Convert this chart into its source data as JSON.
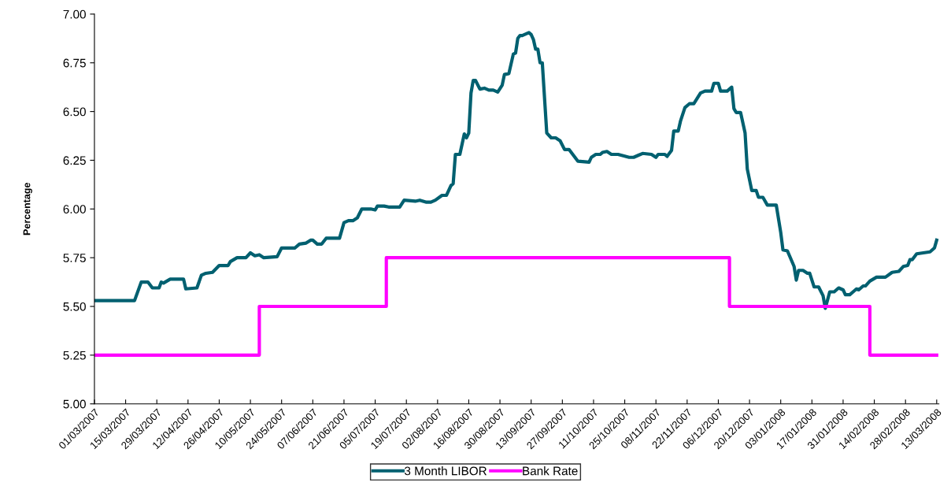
{
  "chart_data": {
    "type": "line",
    "ylabel": "Percentage",
    "xlim": [
      "2007-03-01",
      "2008-03-14"
    ],
    "xticks": [
      {
        "value": "2007-03-01",
        "label": "01/03/2007"
      },
      {
        "value": "2007-03-15",
        "label": "15/03/2007"
      },
      {
        "value": "2007-03-29",
        "label": "29/03/2007"
      },
      {
        "value": "2007-04-12",
        "label": "12/04/2007"
      },
      {
        "value": "2007-04-26",
        "label": "26/04/2007"
      },
      {
        "value": "2007-05-10",
        "label": "10/05/2007"
      },
      {
        "value": "2007-05-24",
        "label": "24/05/2007"
      },
      {
        "value": "2007-06-07",
        "label": "07/06/2007"
      },
      {
        "value": "2007-06-21",
        "label": "21/06/2007"
      },
      {
        "value": "2007-07-05",
        "label": "05/07/2007"
      },
      {
        "value": "2007-07-19",
        "label": "19/07/2007"
      },
      {
        "value": "2007-08-02",
        "label": "02/08/2007"
      },
      {
        "value": "2007-08-16",
        "label": "16/08/2007"
      },
      {
        "value": "2007-08-30",
        "label": "30/08/2007"
      },
      {
        "value": "2007-09-13",
        "label": "13/09/2007"
      },
      {
        "value": "2007-09-27",
        "label": "27/09/2007"
      },
      {
        "value": "2007-10-11",
        "label": "11/10/2007"
      },
      {
        "value": "2007-10-25",
        "label": "25/10/2007"
      },
      {
        "value": "2007-11-08",
        "label": "08/11/2007"
      },
      {
        "value": "2007-11-22",
        "label": "22/11/2007"
      },
      {
        "value": "2007-12-06",
        "label": "06/12/2007"
      },
      {
        "value": "2007-12-20",
        "label": "20/12/2007"
      },
      {
        "value": "2008-01-03",
        "label": "03/01/2008"
      },
      {
        "value": "2008-01-17",
        "label": "17/01/2008"
      },
      {
        "value": "2008-01-31",
        "label": "31/01/2008"
      },
      {
        "value": "2008-02-14",
        "label": "14/02/2008"
      },
      {
        "value": "2008-02-28",
        "label": "28/02/2008"
      },
      {
        "value": "2008-03-13",
        "label": "13/03/2008"
      }
    ],
    "ylim": [
      5,
      7
    ],
    "yticks": [
      {
        "value": 5,
        "label": "5.00"
      },
      {
        "value": 5.25,
        "label": "5.25"
      },
      {
        "value": 5.5,
        "label": "5.50"
      },
      {
        "value": 5.75,
        "label": "5.75"
      },
      {
        "value": 6,
        "label": "6.00"
      },
      {
        "value": 6.25,
        "label": "6.25"
      },
      {
        "value": 6.5,
        "label": "6.50"
      },
      {
        "value": 6.75,
        "label": "6.75"
      },
      {
        "value": 7,
        "label": "7.00"
      }
    ],
    "legend": "bottom",
    "grid": false,
    "marker": "none",
    "line_style": "solid",
    "series": [
      {
        "name": "3 Month LIBOR",
        "color": "#006070",
        "x": [
          "2007-03-01",
          "2007-03-19",
          "2007-03-22",
          "2007-03-25",
          "2007-03-27",
          "2007-03-30",
          "2007-03-31",
          "2007-04-01",
          "2007-04-04",
          "2007-04-10",
          "2007-04-11",
          "2007-04-16",
          "2007-04-18",
          "2007-04-20",
          "2007-04-23",
          "2007-04-26",
          "2007-04-30",
          "2007-05-01",
          "2007-05-04",
          "2007-05-08",
          "2007-05-10",
          "2007-05-12",
          "2007-05-14",
          "2007-05-16",
          "2007-05-22",
          "2007-05-24",
          "2007-05-30",
          "2007-06-01",
          "2007-06-04",
          "2007-06-06",
          "2007-06-07",
          "2007-06-09",
          "2007-06-11",
          "2007-06-13",
          "2007-06-19",
          "2007-06-21",
          "2007-06-23",
          "2007-06-25",
          "2007-06-27",
          "2007-06-29",
          "2007-07-03",
          "2007-07-05",
          "2007-07-06",
          "2007-07-09",
          "2007-07-11",
          "2007-07-16",
          "2007-07-18",
          "2007-07-23",
          "2007-07-25",
          "2007-07-28",
          "2007-07-30",
          "2007-08-01",
          "2007-08-04",
          "2007-08-06",
          "2007-08-08",
          "2007-08-09",
          "2007-08-10",
          "2007-08-12",
          "2007-08-14",
          "2007-08-15",
          "2007-08-16",
          "2007-08-17",
          "2007-08-18",
          "2007-08-19",
          "2007-08-21",
          "2007-08-23",
          "2007-08-25",
          "2007-08-27",
          "2007-08-29",
          "2007-08-31",
          "2007-09-01",
          "2007-09-03",
          "2007-09-05",
          "2007-09-06",
          "2007-09-07",
          "2007-09-08",
          "2007-09-09",
          "2007-09-12",
          "2007-09-13",
          "2007-09-14",
          "2007-09-15",
          "2007-09-16",
          "2007-09-17",
          "2007-09-18",
          "2007-09-20",
          "2007-09-22",
          "2007-09-24",
          "2007-09-26",
          "2007-09-28",
          "2007-09-30",
          "2007-10-04",
          "2007-10-09",
          "2007-10-10",
          "2007-10-12",
          "2007-10-14",
          "2007-10-15",
          "2007-10-17",
          "2007-10-19",
          "2007-10-22",
          "2007-10-27",
          "2007-10-29",
          "2007-10-31",
          "2007-11-02",
          "2007-11-06",
          "2007-11-08",
          "2007-11-09",
          "2007-11-12",
          "2007-11-13",
          "2007-11-15",
          "2007-11-16",
          "2007-11-18",
          "2007-11-19",
          "2007-11-21",
          "2007-11-23",
          "2007-11-25",
          "2007-11-28",
          "2007-11-30",
          "2007-12-03",
          "2007-12-04",
          "2007-12-06",
          "2007-12-07",
          "2007-12-10",
          "2007-12-12",
          "2007-12-13",
          "2007-12-14",
          "2007-12-16",
          "2007-12-18",
          "2007-12-19",
          "2007-12-21",
          "2007-12-23",
          "2007-12-24",
          "2007-12-26",
          "2007-12-28",
          "2008-01-01",
          "2008-01-03",
          "2008-01-04",
          "2008-01-06",
          "2008-01-09",
          "2008-01-10",
          "2008-01-11",
          "2008-01-13",
          "2008-01-15",
          "2008-01-16",
          "2008-01-18",
          "2008-01-20",
          "2008-01-22",
          "2008-01-23",
          "2008-01-25",
          "2008-01-27",
          "2008-01-29",
          "2008-01-31",
          "2008-02-01",
          "2008-02-03",
          "2008-02-05",
          "2008-02-06",
          "2008-02-07",
          "2008-02-09",
          "2008-02-10",
          "2008-02-12",
          "2008-02-15",
          "2008-02-19",
          "2008-02-22",
          "2008-02-25",
          "2008-02-27",
          "2008-02-29",
          "2008-03-01",
          "2008-03-02",
          "2008-03-04",
          "2008-03-07",
          "2008-03-10",
          "2008-03-12",
          "2008-03-13"
        ],
        "values": [
          5.53,
          5.53,
          5.625,
          5.625,
          5.595,
          5.595,
          5.625,
          5.62,
          5.64,
          5.64,
          5.59,
          5.595,
          5.66,
          5.67,
          5.675,
          5.71,
          5.71,
          5.73,
          5.75,
          5.75,
          5.775,
          5.76,
          5.765,
          5.75,
          5.755,
          5.8,
          5.8,
          5.82,
          5.825,
          5.84,
          5.84,
          5.82,
          5.82,
          5.85,
          5.85,
          5.93,
          5.94,
          5.94,
          5.955,
          6.0,
          6.0,
          5.995,
          6.015,
          6.015,
          6.01,
          6.01,
          6.045,
          6.04,
          6.045,
          6.035,
          6.035,
          6.045,
          6.07,
          6.07,
          6.12,
          6.13,
          6.28,
          6.28,
          6.385,
          6.365,
          6.39,
          6.595,
          6.66,
          6.66,
          6.615,
          6.62,
          6.61,
          6.61,
          6.6,
          6.635,
          6.69,
          6.695,
          6.795,
          6.8,
          6.875,
          6.89,
          6.89,
          6.905,
          6.895,
          6.87,
          6.82,
          6.82,
          6.75,
          6.75,
          6.39,
          6.365,
          6.365,
          6.35,
          6.305,
          6.305,
          6.245,
          6.24,
          6.265,
          6.28,
          6.28,
          6.29,
          6.295,
          6.28,
          6.28,
          6.265,
          6.265,
          6.275,
          6.285,
          6.28,
          6.265,
          6.28,
          6.28,
          6.27,
          6.3,
          6.4,
          6.4,
          6.45,
          6.52,
          6.54,
          6.54,
          6.595,
          6.605,
          6.605,
          6.645,
          6.645,
          6.605,
          6.605,
          6.625,
          6.515,
          6.495,
          6.495,
          6.39,
          6.205,
          6.095,
          6.095,
          6.06,
          6.06,
          6.02,
          6.02,
          5.88,
          5.79,
          5.785,
          5.705,
          5.635,
          5.685,
          5.685,
          5.67,
          5.67,
          5.6,
          5.6,
          5.555,
          5.49,
          5.575,
          5.575,
          5.595,
          5.585,
          5.56,
          5.56,
          5.58,
          5.59,
          5.585,
          5.605,
          5.605,
          5.63,
          5.65,
          5.65,
          5.675,
          5.68,
          5.705,
          5.71,
          5.74,
          5.74,
          5.77,
          5.775,
          5.78,
          5.8,
          5.84
        ]
      },
      {
        "name": "Bank Rate",
        "color": "#ff00ff",
        "type": "step",
        "x": [
          "2007-03-01",
          "2007-05-14",
          "2007-07-10",
          "2007-12-11",
          "2008-02-12",
          "2008-03-13"
        ],
        "values": [
          5.25,
          5.5,
          5.75,
          5.5,
          5.25,
          5.25
        ]
      }
    ]
  }
}
